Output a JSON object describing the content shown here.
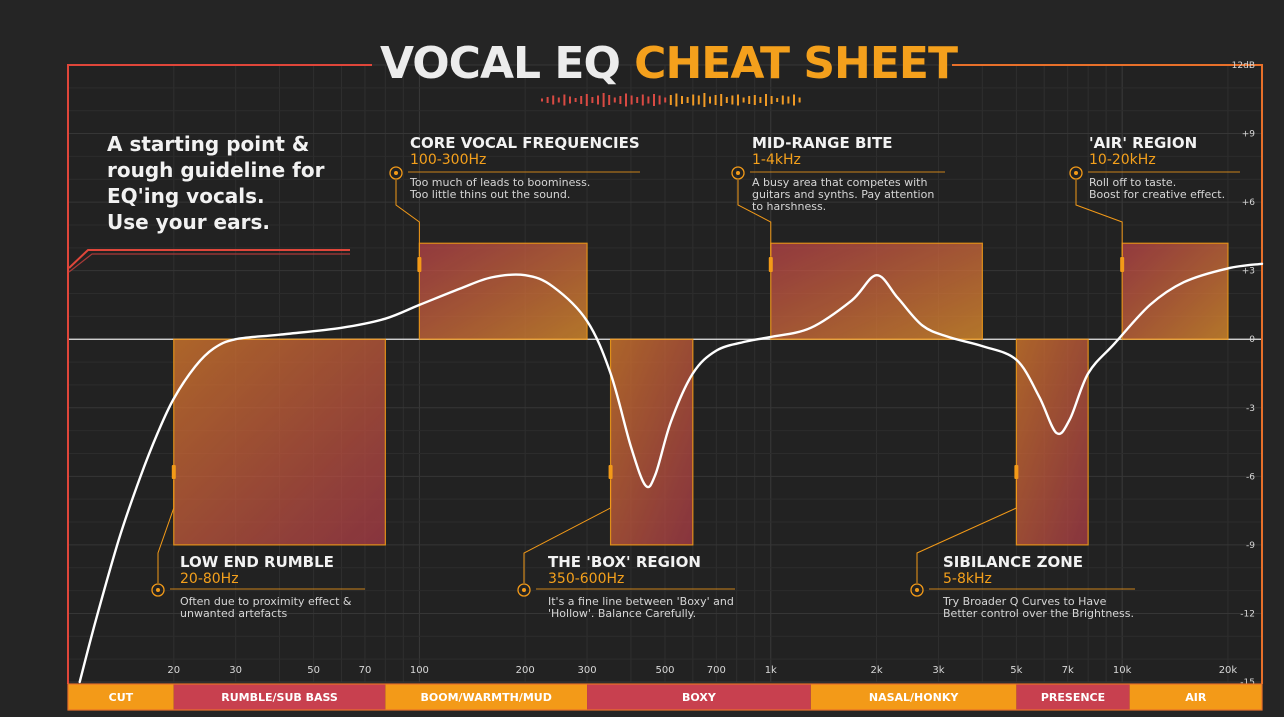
{
  "header": {
    "title_part1": "VOCAL EQ",
    "title_part2": "CHEAT SHEET"
  },
  "intro": {
    "lines": [
      "A starting point &",
      "rough guideline for",
      "EQ'ing vocals.",
      "Use your ears."
    ]
  },
  "colors": {
    "accent_orange": "#f4a01c",
    "frame_red": "#e0463a",
    "band_red": "#c8404f",
    "band_orange": "#f39a18",
    "curve": "#ffffff"
  },
  "annotations": [
    {
      "name": "CORE VOCAL FREQUENCIES",
      "range": "100-300Hz",
      "desc": [
        "Too much of leads to boominess.",
        "Too little thins out the sound."
      ]
    },
    {
      "name": "MID-RANGE BITE",
      "range": "1-4kHz",
      "desc": [
        "A busy area that competes with",
        "guitars and synths. Pay attention",
        "to harshness."
      ]
    },
    {
      "name": "'AIR' REGION",
      "range": "10-20kHz",
      "desc": [
        "Roll off to taste.",
        "Boost for creative effect."
      ]
    },
    {
      "name": "LOW END RUMBLE",
      "range": "20-80Hz",
      "desc": [
        "Often due to proximity effect &",
        "unwanted artefacts"
      ]
    },
    {
      "name": "THE 'BOX' REGION",
      "range": "350-600Hz",
      "desc": [
        "It's a fine line between 'Boxy' and",
        "'Hollow'. Balance Carefully."
      ]
    },
    {
      "name": "SIBILANCE ZONE",
      "range": "5-8kHz",
      "desc": [
        "Try Broader Q Curves to Have",
        "Better control over the Brightness."
      ]
    }
  ],
  "chart_data": {
    "type": "line",
    "x_scale": "log",
    "xlim": [
      10,
      25000
    ],
    "ylim": [
      -15,
      12
    ],
    "x_ticks": [
      {
        "value": 20,
        "label": "20"
      },
      {
        "value": 30,
        "label": "30"
      },
      {
        "value": 50,
        "label": "50"
      },
      {
        "value": 70,
        "label": "70"
      },
      {
        "value": 100,
        "label": "100"
      },
      {
        "value": 200,
        "label": "200"
      },
      {
        "value": 300,
        "label": "300"
      },
      {
        "value": 500,
        "label": "500"
      },
      {
        "value": 700,
        "label": "700"
      },
      {
        "value": 1000,
        "label": "1k"
      },
      {
        "value": 2000,
        "label": "2k"
      },
      {
        "value": 3000,
        "label": "3k"
      },
      {
        "value": 5000,
        "label": "5k"
      },
      {
        "value": 7000,
        "label": "7k"
      },
      {
        "value": 10000,
        "label": "10k"
      },
      {
        "value": 20000,
        "label": "20k"
      }
    ],
    "y_ticks": [
      {
        "value": 12,
        "label": "12dB"
      },
      {
        "value": 9,
        "label": "+9"
      },
      {
        "value": 6,
        "label": "+6"
      },
      {
        "value": 3,
        "label": "+3"
      },
      {
        "value": 0,
        "label": "0"
      },
      {
        "value": -3,
        "label": "-3"
      },
      {
        "value": -6,
        "label": "-6"
      },
      {
        "value": -9,
        "label": "-9"
      },
      {
        "value": -12,
        "label": "-12"
      },
      {
        "value": -15,
        "label": "-15"
      }
    ],
    "regions": [
      {
        "name": "LOW END RUMBLE",
        "x_start": 20,
        "x_end": 80,
        "y_from": 0,
        "y_to": -9
      },
      {
        "name": "CORE VOCAL FREQUENCIES",
        "x_start": 100,
        "x_end": 300,
        "y_from": 0,
        "y_to": 4.2
      },
      {
        "name": "THE 'BOX' REGION",
        "x_start": 350,
        "x_end": 600,
        "y_from": 0,
        "y_to": -9
      },
      {
        "name": "MID-RANGE BITE",
        "x_start": 1000,
        "x_end": 4000,
        "y_from": 0,
        "y_to": 4.2
      },
      {
        "name": "SIBILANCE ZONE",
        "x_start": 5000,
        "x_end": 8000,
        "y_from": 0,
        "y_to": -9
      },
      {
        "name": "'AIR' REGION",
        "x_start": 10000,
        "x_end": 20000,
        "y_from": 0,
        "y_to": 4.2
      }
    ],
    "bands": [
      {
        "label": "CUT",
        "x_start": 10,
        "x_end": 20,
        "color": "orange"
      },
      {
        "label": "RUMBLE/SUB BASS",
        "x_start": 20,
        "x_end": 80,
        "color": "red"
      },
      {
        "label": "BOOM/WARMTH/MUD",
        "x_start": 80,
        "x_end": 300,
        "color": "orange"
      },
      {
        "label": "BOXY",
        "x_start": 300,
        "x_end": 1300,
        "color": "red"
      },
      {
        "label": "NASAL/HONKY",
        "x_start": 1300,
        "x_end": 5000,
        "color": "orange"
      },
      {
        "label": "PRESENCE",
        "x_start": 5000,
        "x_end": 10500,
        "color": "red"
      },
      {
        "label": "AIR",
        "x_start": 10500,
        "x_end": 25000,
        "color": "orange"
      }
    ],
    "eq_curve": [
      [
        10.8,
        -15
      ],
      [
        12,
        -12.3
      ],
      [
        14,
        -8.7
      ],
      [
        16,
        -6.1
      ],
      [
        18,
        -4.1
      ],
      [
        20,
        -2.6
      ],
      [
        23,
        -1.2
      ],
      [
        26,
        -0.4
      ],
      [
        30,
        0
      ],
      [
        40,
        0.2
      ],
      [
        60,
        0.5
      ],
      [
        80,
        0.9
      ],
      [
        100,
        1.5
      ],
      [
        130,
        2.2
      ],
      [
        160,
        2.7
      ],
      [
        200,
        2.8
      ],
      [
        240,
        2.3
      ],
      [
        300,
        0.8
      ],
      [
        350,
        -1.5
      ],
      [
        400,
        -4.7
      ],
      [
        440,
        -6.4
      ],
      [
        470,
        -5.9
      ],
      [
        520,
        -3.6
      ],
      [
        600,
        -1.5
      ],
      [
        700,
        -0.5
      ],
      [
        850,
        -0.1
      ],
      [
        1000,
        0.1
      ],
      [
        1300,
        0.5
      ],
      [
        1700,
        1.7
      ],
      [
        2000,
        2.8
      ],
      [
        2300,
        1.8
      ],
      [
        2700,
        0.6
      ],
      [
        3200,
        0.1
      ],
      [
        4000,
        -0.3
      ],
      [
        5000,
        -0.9
      ],
      [
        5800,
        -2.5
      ],
      [
        6500,
        -4.1
      ],
      [
        7100,
        -3.5
      ],
      [
        8000,
        -1.5
      ],
      [
        9500,
        -0.2
      ],
      [
        12000,
        1.5
      ],
      [
        15000,
        2.5
      ],
      [
        20000,
        3.1
      ],
      [
        25000,
        3.3
      ]
    ]
  }
}
